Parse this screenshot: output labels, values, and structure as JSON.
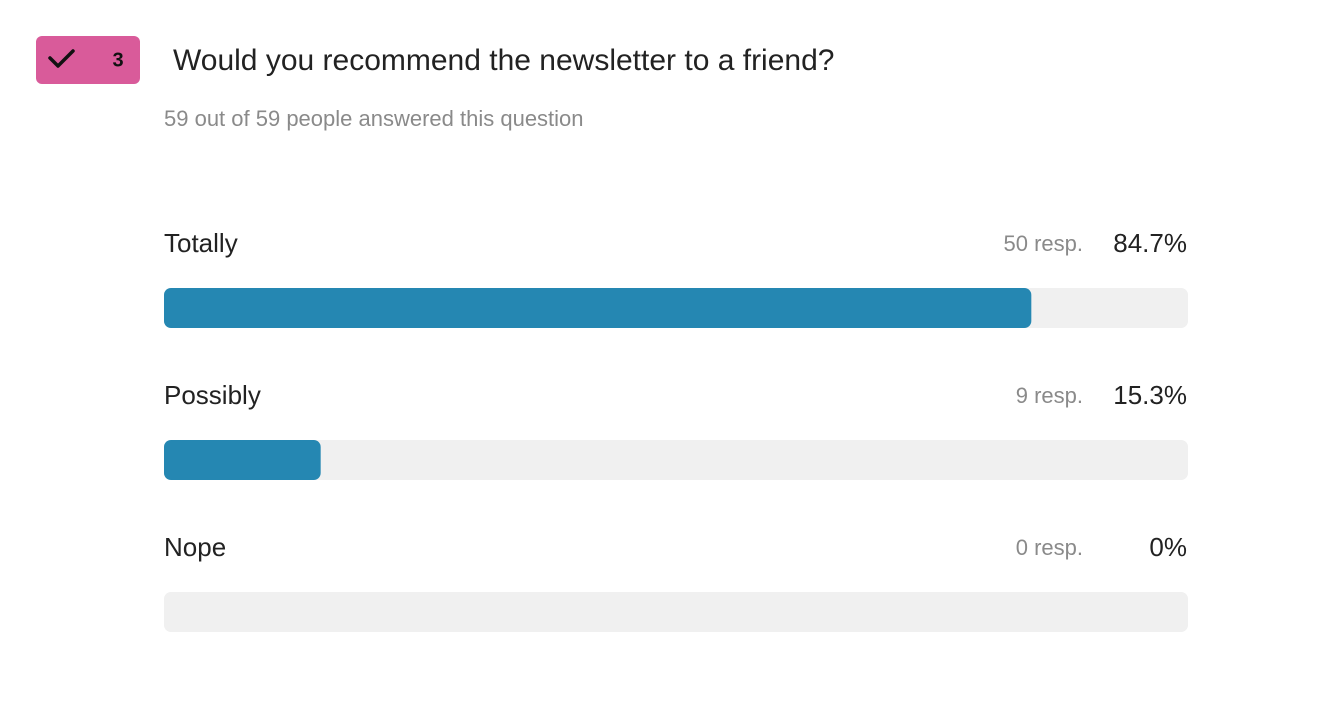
{
  "question": {
    "number": 3,
    "title": "Would you recommend the newsletter to a friend?",
    "subtitle": "59 out of 59 people answered this question"
  },
  "chart_data": {
    "type": "bar",
    "orientation": "horizontal",
    "categories": [
      "Totally",
      "Possibly",
      "Nope"
    ],
    "values": [
      84.7,
      15.3,
      0
    ],
    "value_labels": [
      "84.7%",
      "15.3%",
      "0%"
    ],
    "response_labels": [
      "50 resp.",
      "9 resp.",
      "0 resp."
    ],
    "xlim": [
      0,
      100
    ],
    "color": "#2587b2",
    "track_color": "#f0f0f0"
  }
}
